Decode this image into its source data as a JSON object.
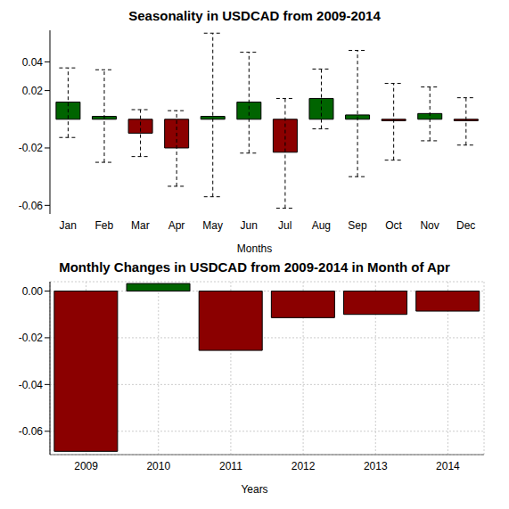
{
  "chart_data": [
    {
      "type": "bar",
      "title": "Seasonality in USDCAD from 2009-2014",
      "xlabel": "Months",
      "categories": [
        "Jan",
        "Feb",
        "Mar",
        "Apr",
        "May",
        "Jun",
        "Jul",
        "Aug",
        "Sep",
        "Oct",
        "Nov",
        "Dec"
      ],
      "values": [
        0.012,
        0.002,
        -0.0097,
        -0.02,
        0.002,
        0.012,
        -0.023,
        0.0145,
        0.003,
        -0.001,
        0.004,
        -0.001
      ],
      "colors": [
        "#006400",
        "#006400",
        "#8b0000",
        "#8b0000",
        "#006400",
        "#006400",
        "#8b0000",
        "#006400",
        "#006400",
        "#8b0000",
        "#006400",
        "#8b0000"
      ],
      "error_bars": {
        "lower": [
          -0.0127,
          -0.03,
          -0.026,
          -0.0467,
          -0.054,
          -0.0236,
          -0.062,
          -0.0067,
          -0.04,
          -0.0285,
          -0.015,
          -0.018
        ],
        "upper": [
          0.0358,
          0.0345,
          0.0067,
          0.006,
          0.06,
          0.0467,
          0.0145,
          0.035,
          0.048,
          0.025,
          0.0225,
          0.015
        ]
      },
      "ylim": [
        -0.066,
        0.062
      ],
      "yticks": [
        -0.06,
        -0.02,
        0.02,
        0.04
      ],
      "grid": false
    },
    {
      "type": "bar",
      "title": "Monthly Changes in USDCAD from 2009-2014 in Month of Apr",
      "xlabel": "Years",
      "categories": [
        "2009",
        "2010",
        "2011",
        "2012",
        "2013",
        "2014"
      ],
      "values": [
        -0.0686,
        0.0032,
        -0.0254,
        -0.0114,
        -0.01,
        -0.0086
      ],
      "colors": [
        "#8b0000",
        "#006400",
        "#8b0000",
        "#8b0000",
        "#8b0000",
        "#8b0000"
      ],
      "ylim": [
        -0.07,
        0.004
      ],
      "yticks": [
        {
          "value": 0,
          "label": "0.00"
        },
        -0.02,
        -0.04,
        -0.06
      ],
      "grid": true
    }
  ]
}
